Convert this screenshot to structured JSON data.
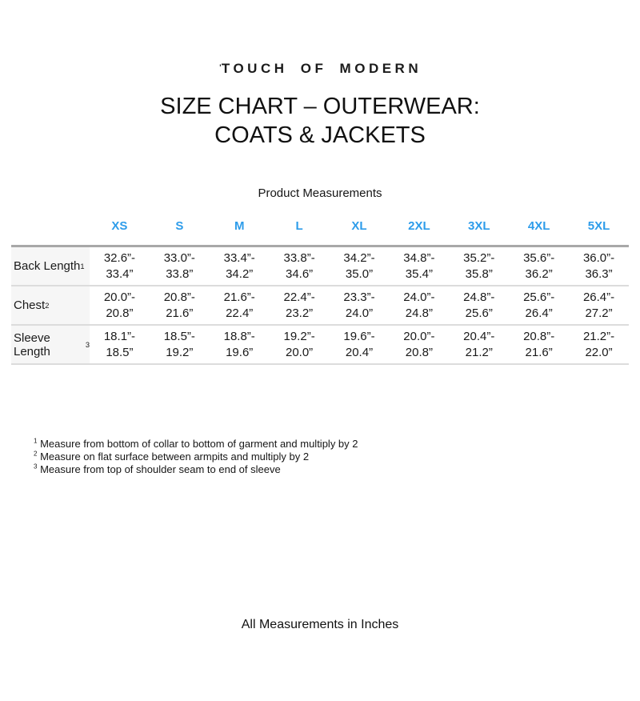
{
  "logo": {
    "tick": "ˈ",
    "text": "TOUCH OF MODERN"
  },
  "title": {
    "line1": "SIZE CHART – OUTERWEAR:",
    "line2": "COATS & JACKETS"
  },
  "section_label": "Product Measurements",
  "table": {
    "sizes": [
      "XS",
      "S",
      "M",
      "L",
      "XL",
      "2XL",
      "3XL",
      "4XL",
      "5XL"
    ],
    "rows": [
      {
        "label": "Back Length",
        "sup": "1",
        "cells": [
          "32.6”-\n33.4”",
          "33.0”-\n33.8”",
          "33.4”-\n34.2”",
          "33.8”-\n34.6”",
          "34.2”-\n35.0”",
          "34.8”-\n35.4”",
          "35.2”-\n35.8”",
          "35.6”-\n36.2”",
          "36.0”-\n36.3”"
        ]
      },
      {
        "label": "Chest",
        "sup": "2",
        "cells": [
          "20.0”-\n20.8”",
          "20.8”-\n21.6”",
          "21.6”-\n22.4”",
          "22.4”-\n23.2”",
          "23.3”-\n24.0”",
          "24.0”-\n24.8”",
          "24.8”-\n25.6”",
          "25.6”-\n26.4”",
          "26.4”-\n27.2”"
        ]
      },
      {
        "label": "Sleeve Length",
        "sup": "3",
        "cells": [
          "18.1”-\n18.5”",
          "18.5”-\n19.2”",
          "18.8”-\n19.6”",
          "19.2”-\n20.0”",
          "19.6”-\n20.4”",
          "20.0”-\n20.8”",
          "20.4”-\n21.2”",
          "20.8”-\n21.6”",
          "21.2”-\n22.0”"
        ]
      }
    ]
  },
  "footnotes": [
    {
      "sup": "1",
      "text": "Measure from bottom of collar to bottom of garment and multiply by 2"
    },
    {
      "sup": "2",
      "text": "Measure on flat surface between armpits and multiply by 2"
    },
    {
      "sup": "3",
      "text": "Measure from top of shoulder seam to end of sleeve"
    }
  ],
  "footer": {
    "note": "All Measurements in Inches"
  },
  "colors": {
    "accent_blue": "#2d9cea",
    "label_bg": "#f6f6f6",
    "rule_heavy": "#a8a8a8",
    "rule_light": "#dcdcdc",
    "text": "#1a1a1a"
  }
}
